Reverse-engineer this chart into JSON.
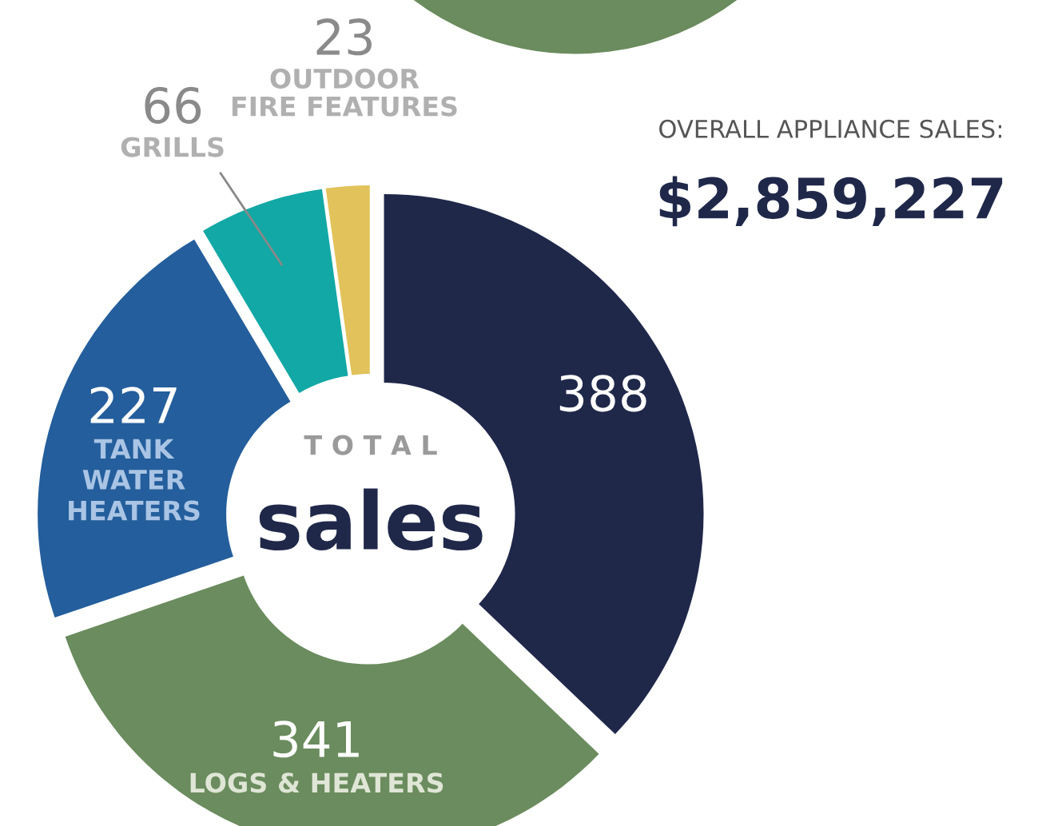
{
  "chart_data": {
    "type": "donut",
    "categories": [
      null,
      "LOGS & HEATERS",
      "TANK\nWATER\nHEATERS",
      "GRILLS",
      "OUTDOOR\nFIRE FEATURES"
    ],
    "values": [
      388,
      341,
      227,
      66,
      23
    ],
    "colors": [
      "#20284a",
      "#6b8c5e",
      "#245e9c",
      "#12a8a5",
      "#e2c25a"
    ],
    "data_labels": true,
    "annotations": [
      "T O T A L",
      "sales",
      "OVERALL APPLIANCE SALES:",
      "$2,859,227"
    ]
  }
}
